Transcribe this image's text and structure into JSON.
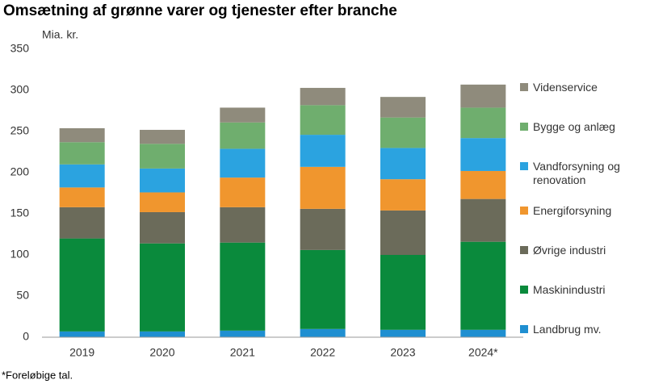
{
  "chart_data": {
    "type": "stacked-bar",
    "title": "Omsætning af grønne varer og tjenester efter branche",
    "y_label": "Mia. kr.",
    "footnote": "*Foreløbige tal.",
    "categories": [
      "2019",
      "2020",
      "2021",
      "2022",
      "2023",
      "2024*"
    ],
    "ylim": [
      0,
      350
    ],
    "yticks": [
      0,
      50,
      100,
      150,
      200,
      250,
      300,
      350
    ],
    "legend_position": "right",
    "series": [
      {
        "name": "Landbrug mv.",
        "color": "#1f8fd1",
        "values": [
          7,
          7,
          8,
          10,
          9,
          9
        ]
      },
      {
        "name": "Maskinindustri",
        "color": "#0a8a3c",
        "values": [
          113,
          107,
          107,
          96,
          91,
          107
        ]
      },
      {
        "name": "Øvrige industri",
        "color": "#6b6b5a",
        "values": [
          38,
          38,
          43,
          50,
          54,
          52
        ]
      },
      {
        "name": "Energiforsyning",
        "color": "#f0962e",
        "values": [
          24,
          24,
          36,
          51,
          38,
          34
        ]
      },
      {
        "name": "Vandforsyning og renovation",
        "color": "#2ba3e0",
        "values": [
          28,
          29,
          35,
          39,
          38,
          40
        ]
      },
      {
        "name": "Bygge og anlæg",
        "color": "#6fae6e",
        "values": [
          27,
          30,
          32,
          36,
          37,
          37
        ]
      },
      {
        "name": "Videnservice",
        "color": "#8f8b7c",
        "values": [
          17,
          17,
          18,
          21,
          25,
          28
        ]
      }
    ]
  }
}
